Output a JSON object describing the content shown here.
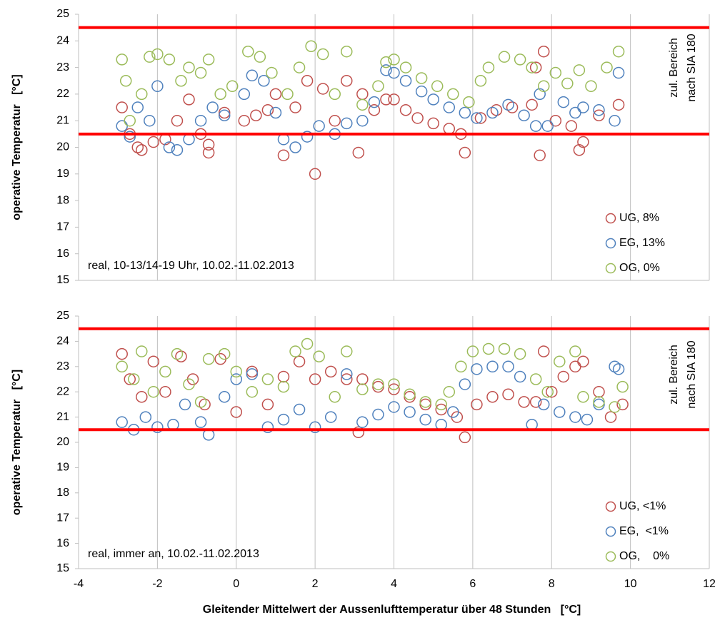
{
  "chart_data": [
    {
      "type": "scatter",
      "ylabel": "operative Temperatur   [°C]",
      "xlim": [
        -4,
        12
      ],
      "xticks": [
        -4,
        -2,
        0,
        2,
        4,
        6,
        8,
        10,
        12
      ],
      "show_xtick_labels": false,
      "ylim": [
        15,
        25
      ],
      "yticks": [
        15,
        16,
        17,
        18,
        19,
        20,
        21,
        22,
        23,
        24,
        25
      ],
      "grid": "x",
      "hlines": [
        {
          "value": 24.5,
          "color": "#ff0000"
        },
        {
          "value": 20.5,
          "color": "#ff0000"
        }
      ],
      "annotation": [
        "zul. Bereich",
        "nach SIA 180"
      ],
      "note": "real, 10-13/14-19 Uhr, 10.02.-11.02.2013",
      "legend": "lower right",
      "series": [
        {
          "name": "UG, 8%",
          "color": "#c0504d",
          "x": [
            -2.9,
            -2.7,
            -2.5,
            -2.4,
            -2.1,
            -1.8,
            -1.5,
            -1.2,
            -0.9,
            -0.7,
            -0.7,
            -0.3,
            0.2,
            0.5,
            0.8,
            1.0,
            1.2,
            1.5,
            1.8,
            2.0,
            2.2,
            2.5,
            2.8,
            3.1,
            3.2,
            3.5,
            3.8,
            4.0,
            4.3,
            4.6,
            5.0,
            5.4,
            5.7,
            5.8,
            6.2,
            6.6,
            7.0,
            7.5,
            7.6,
            7.7,
            7.8,
            8.1,
            8.5,
            8.7,
            8.8,
            9.2,
            9.7
          ],
          "values": [
            21.5,
            20.5,
            20.0,
            19.9,
            20.2,
            20.3,
            21.0,
            21.8,
            20.5,
            19.8,
            20.1,
            21.3,
            21.0,
            21.2,
            21.4,
            22.0,
            19.7,
            21.5,
            22.5,
            19.0,
            22.2,
            21.0,
            22.5,
            19.8,
            22.0,
            21.4,
            21.8,
            21.8,
            21.4,
            21.1,
            20.9,
            20.7,
            20.5,
            19.8,
            21.1,
            21.4,
            21.5,
            21.6,
            23.0,
            19.7,
            23.6,
            21.0,
            20.8,
            19.9,
            20.2,
            21.2,
            21.6
          ]
        },
        {
          "name": "EG, 13%",
          "color": "#4f81bd",
          "x": [
            -2.9,
            -2.7,
            -2.5,
            -2.2,
            -2.0,
            -1.7,
            -1.5,
            -1.2,
            -0.9,
            -0.6,
            -0.3,
            0.2,
            0.4,
            0.7,
            1.0,
            1.2,
            1.5,
            1.8,
            2.1,
            2.5,
            2.8,
            3.2,
            3.5,
            3.8,
            4.0,
            4.3,
            4.7,
            5.0,
            5.4,
            5.8,
            6.1,
            6.5,
            6.9,
            7.3,
            7.6,
            7.7,
            7.9,
            8.3,
            8.6,
            8.8,
            9.2,
            9.6,
            9.7
          ],
          "values": [
            20.8,
            20.4,
            21.5,
            21.0,
            22.3,
            20.0,
            19.9,
            20.3,
            21.0,
            21.5,
            21.2,
            22.0,
            22.7,
            22.5,
            21.3,
            20.3,
            20.0,
            20.4,
            20.8,
            20.5,
            20.9,
            21.0,
            21.7,
            22.9,
            22.8,
            22.5,
            22.1,
            21.8,
            21.5,
            21.3,
            21.1,
            21.3,
            21.6,
            21.2,
            20.8,
            22.0,
            20.8,
            21.7,
            21.3,
            21.5,
            21.4,
            21.0,
            22.8
          ]
        },
        {
          "name": "OG, 0%",
          "color": "#9bbb59",
          "x": [
            -2.9,
            -2.8,
            -2.7,
            -2.4,
            -2.2,
            -2.0,
            -1.7,
            -1.4,
            -1.2,
            -0.9,
            -0.7,
            -0.4,
            -0.1,
            0.3,
            0.6,
            0.9,
            1.3,
            1.6,
            1.9,
            2.2,
            2.5,
            2.8,
            3.2,
            3.6,
            3.8,
            4.0,
            4.3,
            4.7,
            5.1,
            5.5,
            5.9,
            6.2,
            6.4,
            6.8,
            7.2,
            7.5,
            7.8,
            8.1,
            8.4,
            8.7,
            9.0,
            9.4,
            9.7
          ],
          "values": [
            23.3,
            22.5,
            21.0,
            22.0,
            23.4,
            23.5,
            23.3,
            22.5,
            23.0,
            22.8,
            23.3,
            22.0,
            22.3,
            23.6,
            23.4,
            22.8,
            22.0,
            23.0,
            23.8,
            23.5,
            22.0,
            23.6,
            21.6,
            22.3,
            23.2,
            23.3,
            23.0,
            22.6,
            22.3,
            22.0,
            21.7,
            22.5,
            23.0,
            23.4,
            23.3,
            23.0,
            22.3,
            22.8,
            22.4,
            22.9,
            22.3,
            23.0,
            23.6
          ]
        }
      ]
    },
    {
      "type": "scatter",
      "ylabel": "operative Temperatur   [°C]",
      "xlabel": "Gleitender Mittelwert der Aussenlufttemperatur über 48 Stunden   [°C]",
      "xlim": [
        -4,
        12
      ],
      "xticks": [
        -4,
        -2,
        0,
        2,
        4,
        6,
        8,
        10,
        12
      ],
      "show_xtick_labels": true,
      "ylim": [
        15,
        25
      ],
      "yticks": [
        15,
        16,
        17,
        18,
        19,
        20,
        21,
        22,
        23,
        24,
        25
      ],
      "grid": "x",
      "hlines": [
        {
          "value": 24.5,
          "color": "#ff0000"
        },
        {
          "value": 20.5,
          "color": "#ff0000"
        }
      ],
      "annotation": [
        "zul. Bereich",
        "nach SIA 180"
      ],
      "note": "real, immer an, 10.02.-11.02.2013",
      "legend": "lower right",
      "series": [
        {
          "name": "UG, <1%",
          "color": "#c0504d",
          "x": [
            -2.9,
            -2.7,
            -2.4,
            -2.1,
            -1.8,
            -1.4,
            -1.1,
            -0.8,
            -0.4,
            0.0,
            0.4,
            0.8,
            1.2,
            1.6,
            2.0,
            2.4,
            2.8,
            3.1,
            3.2,
            3.6,
            4.0,
            4.4,
            4.8,
            5.2,
            5.6,
            5.8,
            6.1,
            6.5,
            6.9,
            7.3,
            7.6,
            7.8,
            8.0,
            8.3,
            8.6,
            8.8,
            9.2,
            9.5,
            9.8
          ],
          "values": [
            23.5,
            22.5,
            21.8,
            23.2,
            22.0,
            23.4,
            22.5,
            21.5,
            23.3,
            21.2,
            22.8,
            21.5,
            22.6,
            23.2,
            22.5,
            22.8,
            22.5,
            20.4,
            22.5,
            22.2,
            22.1,
            21.8,
            21.5,
            21.3,
            21.0,
            20.2,
            21.5,
            21.8,
            21.9,
            21.6,
            21.6,
            23.6,
            22.0,
            22.6,
            23.0,
            23.2,
            22.0,
            21.0,
            21.5
          ]
        },
        {
          "name": "EG,  <1%",
          "color": "#4f81bd",
          "x": [
            -2.9,
            -2.6,
            -2.3,
            -2.0,
            -1.6,
            -1.3,
            -0.9,
            -0.7,
            -0.3,
            0.0,
            0.4,
            0.8,
            1.2,
            1.6,
            2.0,
            2.4,
            2.8,
            3.2,
            3.6,
            4.0,
            4.4,
            4.8,
            5.2,
            5.5,
            5.8,
            6.1,
            6.5,
            6.9,
            7.2,
            7.5,
            7.8,
            8.2,
            8.6,
            8.9,
            9.2,
            9.6,
            9.7
          ],
          "values": [
            20.8,
            20.5,
            21.0,
            20.6,
            20.7,
            21.5,
            20.8,
            20.3,
            21.8,
            22.5,
            22.7,
            20.6,
            20.9,
            21.3,
            20.6,
            21.0,
            22.7,
            20.8,
            21.1,
            21.4,
            21.2,
            20.9,
            20.7,
            21.2,
            22.3,
            22.9,
            23.0,
            23.0,
            22.6,
            20.7,
            21.5,
            21.2,
            21.0,
            20.9,
            21.5,
            23.0,
            22.9
          ]
        },
        {
          "name": "OG,    0%",
          "color": "#9bbb59",
          "x": [
            -2.9,
            -2.6,
            -2.4,
            -2.1,
            -1.8,
            -1.5,
            -1.2,
            -0.9,
            -0.7,
            -0.3,
            0.0,
            0.4,
            0.8,
            1.2,
            1.5,
            1.8,
            2.1,
            2.5,
            2.8,
            3.2,
            3.6,
            4.0,
            4.4,
            4.8,
            5.2,
            5.4,
            5.7,
            6.0,
            6.4,
            6.8,
            7.2,
            7.6,
            7.9,
            8.2,
            8.6,
            8.8,
            9.2,
            9.6,
            9.8
          ],
          "values": [
            23.0,
            22.5,
            23.6,
            22.0,
            22.8,
            23.5,
            22.3,
            21.6,
            23.3,
            23.5,
            22.8,
            22.0,
            22.5,
            22.2,
            23.6,
            23.9,
            23.4,
            21.8,
            23.6,
            22.1,
            22.3,
            22.3,
            21.9,
            21.6,
            21.5,
            22.0,
            23.0,
            23.6,
            23.7,
            23.7,
            23.5,
            22.5,
            22.0,
            23.2,
            23.6,
            21.8,
            21.6,
            21.4,
            22.2
          ]
        }
      ]
    }
  ]
}
